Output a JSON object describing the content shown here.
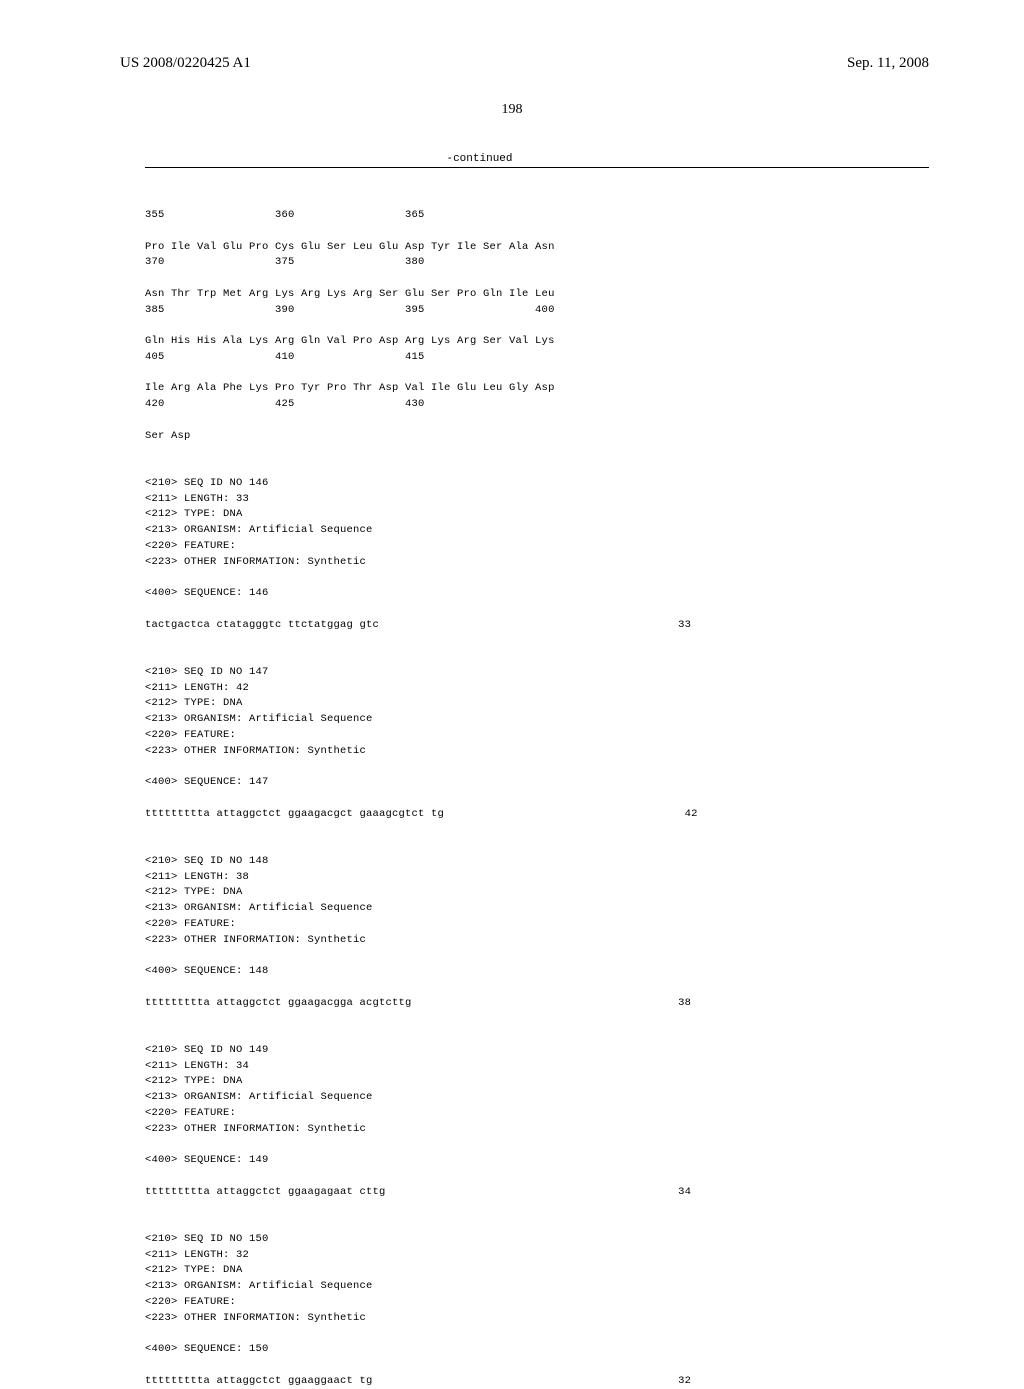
{
  "header": {
    "left": "US 2008/0220425 A1",
    "right": "Sep. 11, 2008"
  },
  "pageNumber": "198",
  "continued": "-continued",
  "protein": {
    "line1": "355                 360                 365",
    "line2a": "Pro Ile Val Glu Pro Cys Glu Ser Leu Glu Asp Tyr Ile Ser Ala Asn",
    "line2b": "370                 375                 380",
    "line3a": "Asn Thr Trp Met Arg Lys Arg Lys Arg Ser Glu Ser Pro Gln Ile Leu",
    "line3b": "385                 390                 395                 400",
    "line4a": "Gln His His Ala Lys Arg Gln Val Pro Asp Arg Lys Arg Ser Val Lys",
    "line4b": "405                 410                 415",
    "line5a": "Ile Arg Ala Phe Lys Pro Tyr Pro Thr Asp Val Ile Glu Leu Gly Asp",
    "line5b": "420                 425                 430",
    "line6": "Ser Asp"
  },
  "seq146": {
    "h1": "<210> SEQ ID NO 146",
    "h2": "<211> LENGTH: 33",
    "h3": "<212> TYPE: DNA",
    "h4": "<213> ORGANISM: Artificial Sequence",
    "h5": "<220> FEATURE:",
    "h6": "<223> OTHER INFORMATION: Synthetic",
    "label": "<400> SEQUENCE: 146",
    "seq": "tactgactca ctatagggtc ttctatggag gtc",
    "len": "33"
  },
  "seq147": {
    "h1": "<210> SEQ ID NO 147",
    "h2": "<211> LENGTH: 42",
    "h3": "<212> TYPE: DNA",
    "h4": "<213> ORGANISM: Artificial Sequence",
    "h5": "<220> FEATURE:",
    "h6": "<223> OTHER INFORMATION: Synthetic",
    "label": "<400> SEQUENCE: 147",
    "seq": "ttttttttta attaggctct ggaagacgct gaaagcgtct tg",
    "len": "42"
  },
  "seq148": {
    "h1": "<210> SEQ ID NO 148",
    "h2": "<211> LENGTH: 38",
    "h3": "<212> TYPE: DNA",
    "h4": "<213> ORGANISM: Artificial Sequence",
    "h5": "<220> FEATURE:",
    "h6": "<223> OTHER INFORMATION: Synthetic",
    "label": "<400> SEQUENCE: 148",
    "seq": "ttttttttta attaggctct ggaagacgga acgtcttg",
    "len": "38"
  },
  "seq149": {
    "h1": "<210> SEQ ID NO 149",
    "h2": "<211> LENGTH: 34",
    "h3": "<212> TYPE: DNA",
    "h4": "<213> ORGANISM: Artificial Sequence",
    "h5": "<220> FEATURE:",
    "h6": "<223> OTHER INFORMATION: Synthetic",
    "label": "<400> SEQUENCE: 149",
    "seq": "ttttttttta attaggctct ggaagagaat cttg",
    "len": "34"
  },
  "seq150": {
    "h1": "<210> SEQ ID NO 150",
    "h2": "<211> LENGTH: 32",
    "h3": "<212> TYPE: DNA",
    "h4": "<213> ORGANISM: Artificial Sequence",
    "h5": "<220> FEATURE:",
    "h6": "<223> OTHER INFORMATION: Synthetic",
    "label": "<400> SEQUENCE: 150",
    "seq": "ttttttttta attaggctct ggaaggaact tg",
    "len": "32"
  }
}
